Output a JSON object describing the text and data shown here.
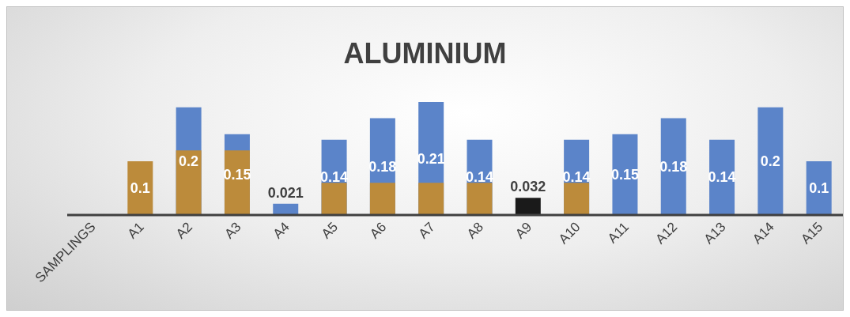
{
  "chart_data": {
    "type": "bar",
    "title": "ALUMINIUM",
    "categories": [
      "SAMPLINGS",
      "A1",
      "A2",
      "A3",
      "A4",
      "A5",
      "A6",
      "A7",
      "A8",
      "A9",
      "A10",
      "A11",
      "A12",
      "A13",
      "A14",
      "A15"
    ],
    "series": [
      {
        "color": "#5b84c9",
        "colors": [
          "#5b84c9",
          "#5b84c9",
          "#5b84c9",
          "#5b84c9",
          "#5b84c9",
          "#5b84c9",
          "#5b84c9",
          "#5b84c9",
          "#5b84c9",
          "#1a1a1a",
          "#5b84c9",
          "#5b84c9",
          "#5b84c9",
          "#5b84c9",
          "#5b84c9",
          "#5b84c9"
        ],
        "values": [
          null,
          null,
          0.2,
          0.15,
          0.021,
          0.14,
          0.18,
          0.21,
          0.14,
          0.032,
          0.14,
          0.15,
          0.18,
          0.14,
          0.2,
          0.1
        ],
        "value_labels": [
          null,
          null,
          "0.2",
          "0.15",
          "0.021",
          "0.14",
          "0.18",
          "0.21",
          "0.14",
          "0.032",
          "0.14",
          "0.15",
          "0.18",
          "0.14",
          "0.2",
          "0.1"
        ]
      },
      {
        "color": "#bc8b3b",
        "values": [
          null,
          0.1,
          0.12,
          0.12,
          null,
          0.06,
          0.06,
          0.06,
          0.06,
          null,
          0.06,
          null,
          null,
          null,
          null,
          null
        ],
        "value_labels": [
          null,
          "0.1",
          null,
          null,
          null,
          null,
          null,
          null,
          null,
          null,
          null,
          null,
          null,
          null,
          null,
          null
        ]
      }
    ]
  }
}
